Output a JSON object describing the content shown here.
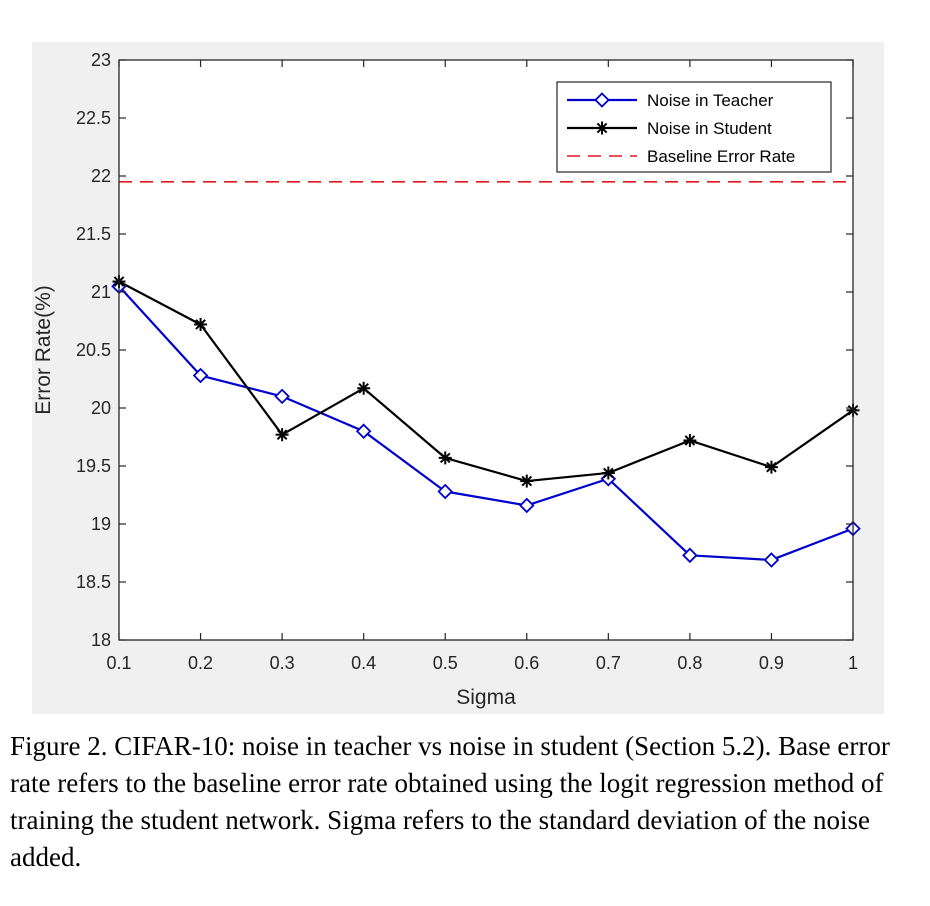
{
  "figure": {
    "caption": "Figure 2. CIFAR-10: noise in teacher vs noise in student (Section 5.2). Base error rate refers to the baseline error rate obtained using the logit regression method of training the student network. Sigma refers to the standard deviation of the noise added."
  },
  "colors": {
    "teacher": "#0000cc",
    "student": "#000000",
    "baseline": "#e0191f",
    "panel_background": "#f0f0f0",
    "axes_background": "#ffffff"
  },
  "chart_data": {
    "type": "line",
    "title": "",
    "xlabel": "Sigma",
    "ylabel": "Error Rate(%)",
    "xlim": [
      0.1,
      1
    ],
    "ylim": [
      18,
      23
    ],
    "x": [
      0.1,
      0.2,
      0.3,
      0.4,
      0.5,
      0.6,
      0.7,
      0.8,
      0.9,
      1
    ],
    "x_tick_labels": [
      "0.1",
      "0.2",
      "0.3",
      "0.4",
      "0.5",
      "0.6",
      "0.7",
      "0.8",
      "0.9",
      "1"
    ],
    "y_ticks": [
      18,
      18.5,
      19,
      19.5,
      20,
      20.5,
      21,
      21.5,
      22,
      22.5,
      23
    ],
    "y_tick_labels": [
      "18",
      "18.5",
      "19",
      "19.5",
      "20",
      "20.5",
      "21",
      "21.5",
      "22",
      "22.5",
      "23"
    ],
    "grid": false,
    "legend_position": "top-right",
    "series": [
      {
        "name": "Noise in Teacher",
        "marker": "diamond",
        "color": "#0000cc",
        "values": [
          21.05,
          20.28,
          20.1,
          19.8,
          19.28,
          19.16,
          19.39,
          18.73,
          18.69,
          18.96
        ]
      },
      {
        "name": "Noise in Student",
        "marker": "asterisk",
        "color": "#000000",
        "values": [
          21.09,
          20.72,
          19.77,
          20.17,
          19.57,
          19.37,
          19.44,
          19.72,
          19.49,
          19.98
        ]
      }
    ],
    "reference_lines": [
      {
        "name": "Baseline Error Rate",
        "y": 21.95,
        "style": "dashed",
        "color": "#e0191f"
      }
    ]
  }
}
